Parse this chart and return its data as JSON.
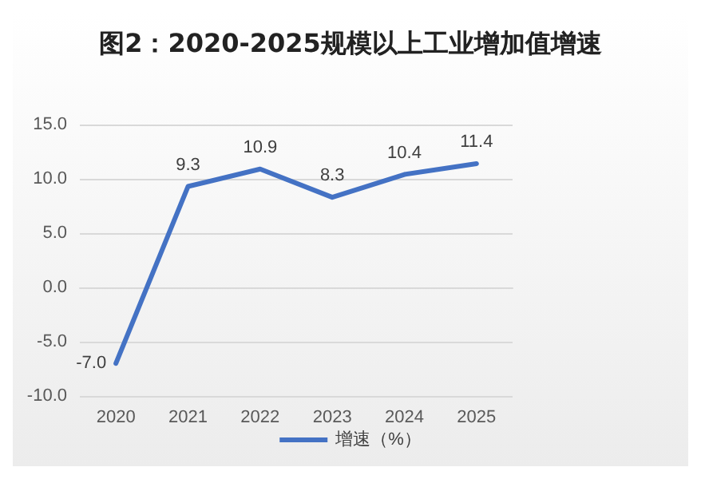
{
  "chart_data": {
    "type": "line",
    "title": "图2：2020-2025规模以上工业增加值增速",
    "categories": [
      "2020",
      "2021",
      "2022",
      "2023",
      "2024",
      "2025"
    ],
    "series": [
      {
        "name": "增速（%）",
        "color": "#4472c4",
        "values": [
          -7.0,
          9.3,
          10.9,
          8.3,
          10.4,
          11.4
        ],
        "value_labels": [
          "-7.0",
          "9.3",
          "10.9",
          "8.3",
          "10.4",
          "11.4"
        ]
      }
    ],
    "ylim": [
      -10,
      15
    ],
    "yticks": [
      {
        "value": -10,
        "label": "-10.0"
      },
      {
        "value": -5,
        "label": "-5.0"
      },
      {
        "value": 0,
        "label": "0.0"
      },
      {
        "value": 5,
        "label": "5.0"
      },
      {
        "value": 10,
        "label": "10.0"
      },
      {
        "value": 15,
        "label": "15.0"
      }
    ],
    "grid": "y",
    "legend": "bottom",
    "marker": "none",
    "line_style": "solid"
  }
}
